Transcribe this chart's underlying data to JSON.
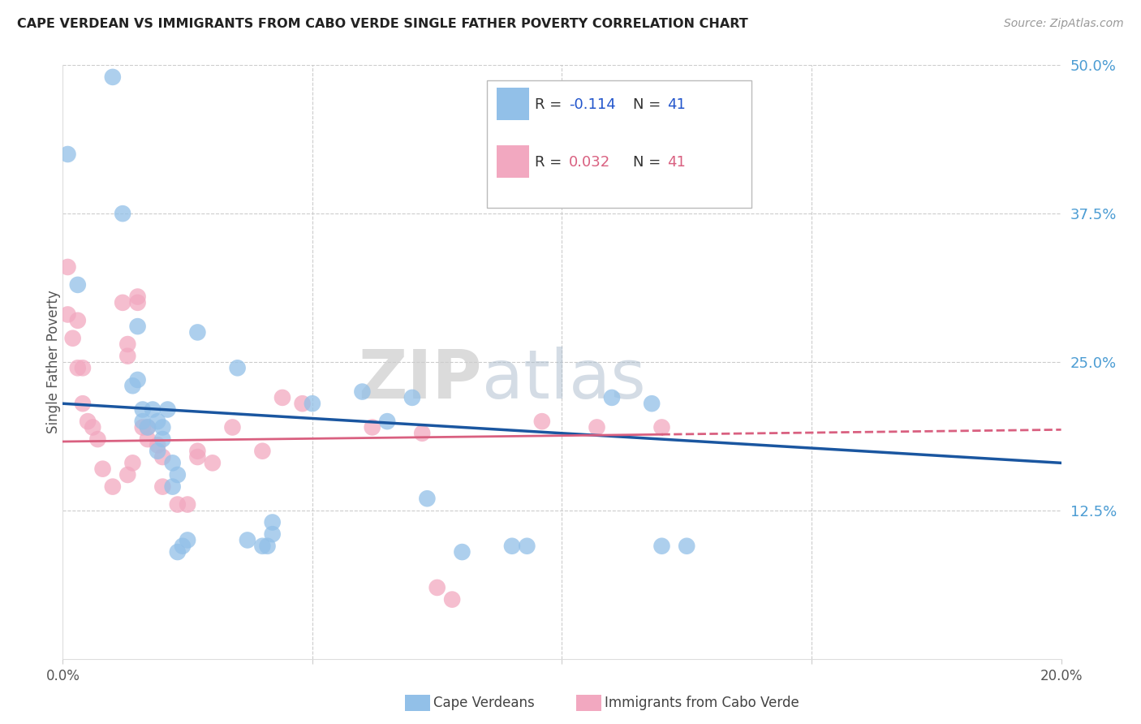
{
  "title": "CAPE VERDEAN VS IMMIGRANTS FROM CABO VERDE SINGLE FATHER POVERTY CORRELATION CHART",
  "source": "Source: ZipAtlas.com",
  "ylabel": "Single Father Poverty",
  "xlim": [
    0.0,
    0.2
  ],
  "ylim": [
    0.0,
    0.5
  ],
  "ytick_values": [
    0.125,
    0.25,
    0.375,
    0.5
  ],
  "ytick_labels": [
    "12.5%",
    "25.0%",
    "37.5%",
    "50.0%"
  ],
  "xtick_values": [
    0.0,
    0.05,
    0.1,
    0.15,
    0.2
  ],
  "xtick_labels": [
    "0.0%",
    "",
    "",
    "",
    "20.0%"
  ],
  "legend_r1": "-0.114",
  "legend_n1": "41",
  "legend_r2": "0.032",
  "legend_n2": "41",
  "legend_label1": "Cape Verdeans",
  "legend_label2": "Immigrants from Cabo Verde",
  "blue_color": "#92C0E8",
  "pink_color": "#F2A8C0",
  "blue_line_color": "#1A56A0",
  "pink_line_color": "#D96080",
  "blue_scatter_x": [
    0.001,
    0.003,
    0.01,
    0.012,
    0.014,
    0.015,
    0.015,
    0.016,
    0.016,
    0.017,
    0.018,
    0.019,
    0.019,
    0.02,
    0.02,
    0.021,
    0.022,
    0.022,
    0.023,
    0.023,
    0.024,
    0.025,
    0.027,
    0.035,
    0.037,
    0.04,
    0.041,
    0.042,
    0.042,
    0.05,
    0.06,
    0.065,
    0.07,
    0.073,
    0.08,
    0.09,
    0.093,
    0.11,
    0.118,
    0.12,
    0.125
  ],
  "blue_scatter_y": [
    0.425,
    0.315,
    0.49,
    0.375,
    0.23,
    0.28,
    0.235,
    0.21,
    0.2,
    0.195,
    0.21,
    0.175,
    0.2,
    0.195,
    0.185,
    0.21,
    0.165,
    0.145,
    0.155,
    0.09,
    0.095,
    0.1,
    0.275,
    0.245,
    0.1,
    0.095,
    0.095,
    0.115,
    0.105,
    0.215,
    0.225,
    0.2,
    0.22,
    0.135,
    0.09,
    0.095,
    0.095,
    0.22,
    0.215,
    0.095,
    0.095
  ],
  "pink_scatter_x": [
    0.001,
    0.001,
    0.002,
    0.003,
    0.003,
    0.004,
    0.004,
    0.005,
    0.006,
    0.007,
    0.008,
    0.01,
    0.012,
    0.013,
    0.013,
    0.013,
    0.014,
    0.015,
    0.015,
    0.016,
    0.017,
    0.017,
    0.019,
    0.02,
    0.02,
    0.023,
    0.025,
    0.027,
    0.027,
    0.03,
    0.034,
    0.04,
    0.044,
    0.048,
    0.062,
    0.072,
    0.075,
    0.078,
    0.096,
    0.107,
    0.12
  ],
  "pink_scatter_y": [
    0.33,
    0.29,
    0.27,
    0.285,
    0.245,
    0.245,
    0.215,
    0.2,
    0.195,
    0.185,
    0.16,
    0.145,
    0.3,
    0.265,
    0.255,
    0.155,
    0.165,
    0.305,
    0.3,
    0.195,
    0.185,
    0.195,
    0.18,
    0.17,
    0.145,
    0.13,
    0.13,
    0.175,
    0.17,
    0.165,
    0.195,
    0.175,
    0.22,
    0.215,
    0.195,
    0.19,
    0.06,
    0.05,
    0.2,
    0.195,
    0.195
  ]
}
